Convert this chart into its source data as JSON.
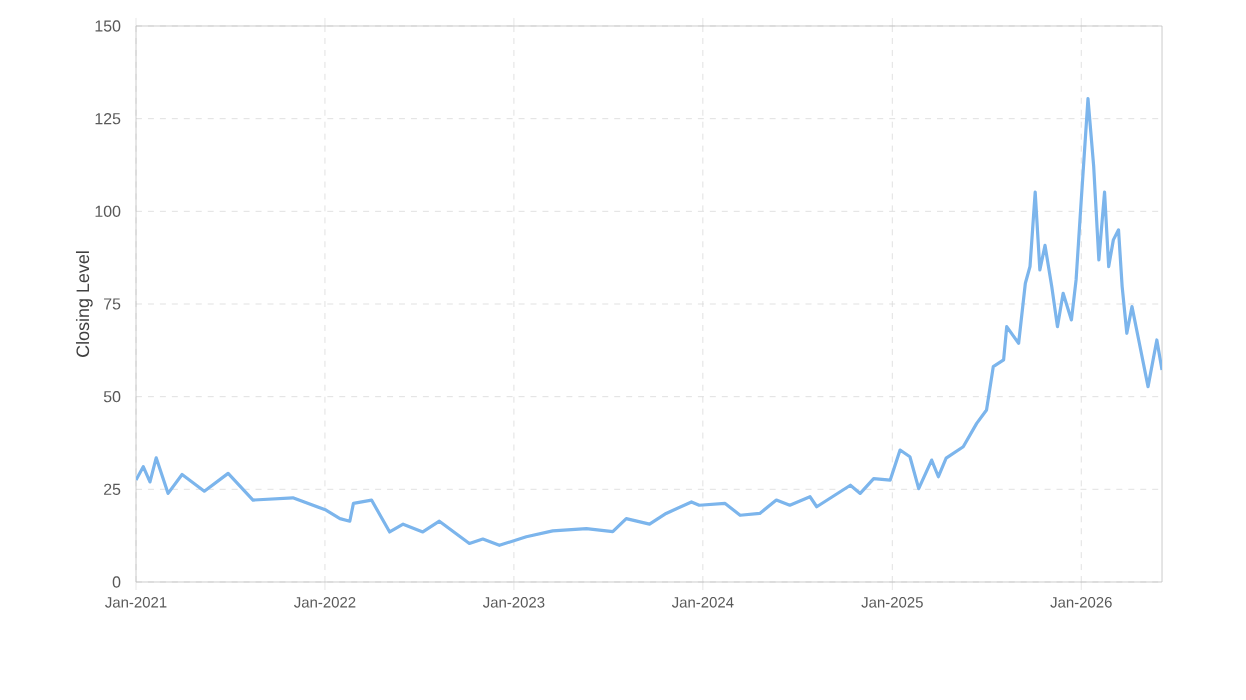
{
  "chart_data": {
    "type": "line",
    "ylabel": "Closing Level",
    "x": [
      "2021-01-01",
      "2021-01-15",
      "2021-01-28",
      "2021-02-09",
      "2021-03-04",
      "2021-03-31",
      "2021-05-13",
      "2021-06-28",
      "2021-08-15",
      "2021-10-31",
      "2022-01-03",
      "2022-01-30",
      "2022-02-18",
      "2022-02-25",
      "2022-04-01",
      "2022-05-06",
      "2022-06-01",
      "2022-07-09",
      "2022-08-10",
      "2022-10-07",
      "2022-11-02",
      "2022-12-04",
      "2023-01-25",
      "2023-03-17",
      "2023-05-21",
      "2023-07-11",
      "2023-08-06",
      "2023-09-20",
      "2023-10-22",
      "2023-12-10",
      "2023-12-25",
      "2024-02-13",
      "2024-03-13",
      "2024-04-20",
      "2024-05-22",
      "2024-06-17",
      "2024-07-26",
      "2024-08-08",
      "2024-10-12",
      "2024-10-31",
      "2024-11-26",
      "2024-12-28",
      "2025-01-16",
      "2025-02-04",
      "2025-02-21",
      "2025-03-18",
      "2025-03-31",
      "2025-04-15",
      "2025-05-18",
      "2025-06-13",
      "2025-07-02",
      "2025-07-15",
      "2025-08-04",
      "2025-08-10",
      "2025-09-02",
      "2025-09-15",
      "2025-09-24",
      "2025-10-04",
      "2025-10-13",
      "2025-10-23",
      "2025-11-05",
      "2025-11-16",
      "2025-11-27",
      "2025-12-13",
      "2025-12-22",
      "2026-01-01",
      "2026-01-14",
      "2026-01-25",
      "2026-02-04",
      "2026-02-15",
      "2026-02-23",
      "2026-03-04",
      "2026-03-14",
      "2026-03-21",
      "2026-03-30",
      "2026-04-09",
      "2026-04-22",
      "2026-05-10",
      "2026-05-27",
      "2026-06-06"
    ],
    "series": [
      {
        "color": "#7cb5ec",
        "values": [
          27.5,
          31.1,
          27,
          33.5,
          23.9,
          29,
          24.5,
          29.3,
          22.1,
          22.7,
          19.4,
          17.1,
          16.4,
          21.2,
          22.1,
          13.5,
          15.6,
          13.5,
          16.4,
          10.4,
          11.6,
          9.9,
          12.2,
          13.8,
          14.4,
          13.6,
          17.1,
          15.6,
          18.5,
          21.6,
          20.7,
          21.2,
          18,
          18.5,
          22.1,
          20.7,
          23,
          20.3,
          26.1,
          23.9,
          27.9,
          27.5,
          35.6,
          33.8,
          25.2,
          32.9,
          28.4,
          33.4,
          36.5,
          42.8,
          46.4,
          58.1,
          59.9,
          68.9,
          64.4,
          80.6,
          85.1,
          105.2,
          84.2,
          90.8,
          79.7,
          68.9,
          77.9,
          70.7,
          81.5,
          103.1,
          130.4,
          112.1,
          86.9,
          105.2,
          85.1,
          92.3,
          95,
          79.7,
          67.1,
          74.3,
          65.3,
          52.7,
          65.3,
          57.2
        ]
      }
    ],
    "xlim": [
      "2021-01-01",
      "2026-06-06"
    ],
    "xticks": [
      {
        "value": "2021-01-01",
        "label": "Jan-2021"
      },
      {
        "value": "2022-01-01",
        "label": "Jan-2022"
      },
      {
        "value": "2023-01-01",
        "label": "Jan-2023"
      },
      {
        "value": "2024-01-01",
        "label": "Jan-2024"
      },
      {
        "value": "2025-01-01",
        "label": "Jan-2025"
      },
      {
        "value": "2026-01-01",
        "label": "Jan-2026"
      }
    ],
    "ylim": [
      0,
      150
    ],
    "yticks": [
      0,
      25,
      50,
      75,
      100,
      125,
      150
    ],
    "grid": true,
    "marker": "none",
    "line_style": "solid"
  }
}
